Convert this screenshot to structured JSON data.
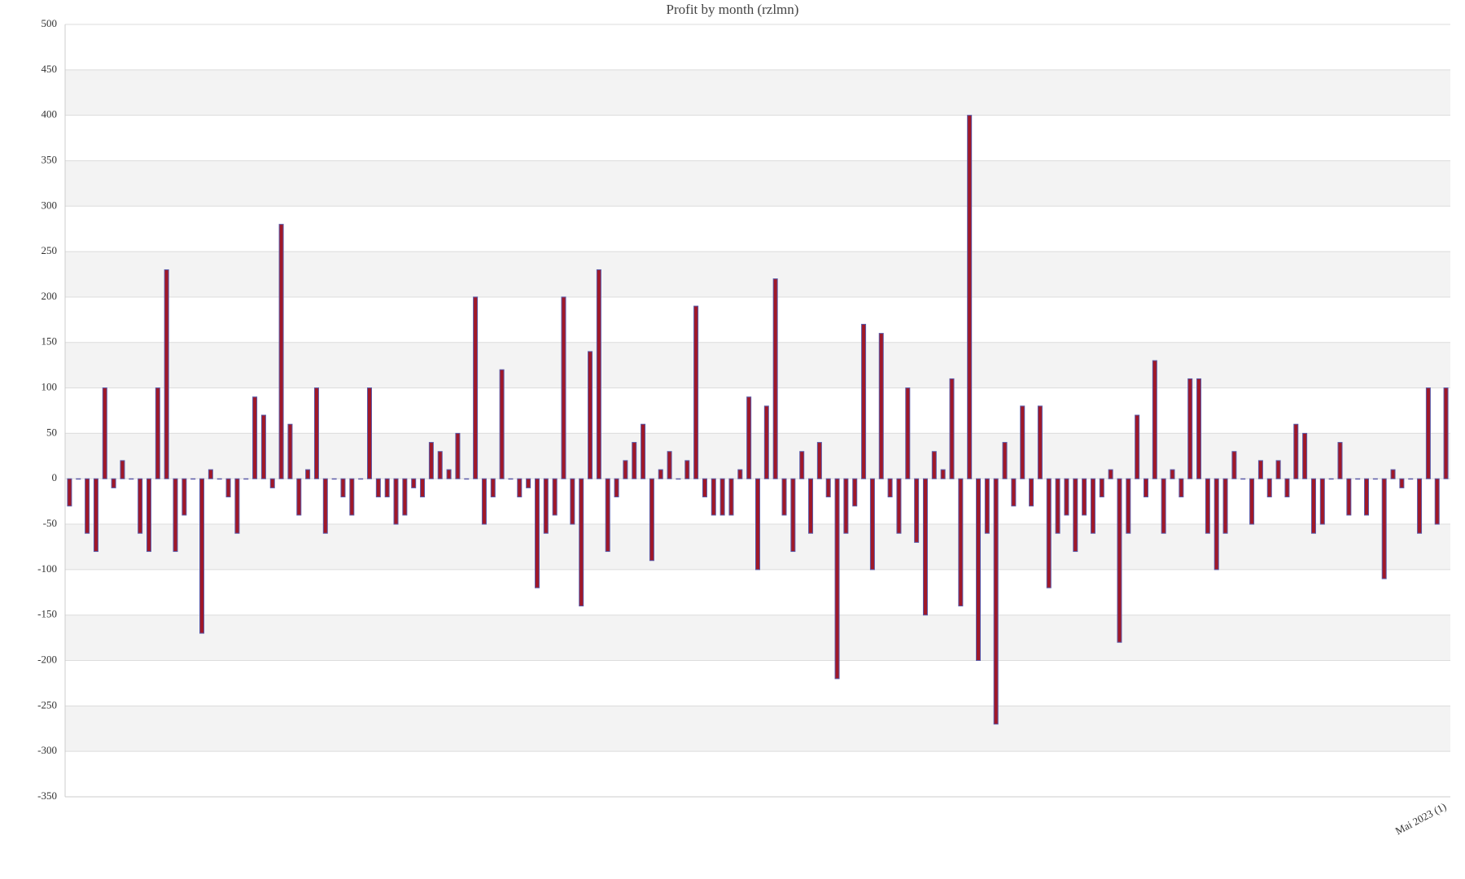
{
  "chart_data": {
    "type": "bar",
    "title": "Profit by month  (rzlmn)",
    "categories": [
      null,
      null,
      null,
      null,
      null,
      null,
      null,
      null,
      null,
      null,
      null,
      null,
      null,
      null,
      null,
      null,
      null,
      null,
      null,
      null,
      null,
      null,
      null,
      null,
      null,
      null,
      null,
      null,
      null,
      null,
      null,
      null,
      null,
      null,
      null,
      null,
      null,
      null,
      null,
      null,
      null,
      null,
      null,
      null,
      null,
      null,
      null,
      null,
      null,
      null,
      null,
      null,
      null,
      null,
      null,
      null,
      null,
      null,
      null,
      null,
      null,
      null,
      null,
      null,
      null,
      null,
      null,
      null,
      null,
      null,
      null,
      null,
      null,
      null,
      null,
      null,
      null,
      null,
      null,
      null,
      null,
      null,
      null,
      null,
      null,
      null,
      null,
      null,
      null,
      null,
      null,
      null,
      null,
      null,
      null,
      null,
      null,
      null,
      null,
      null,
      null,
      null,
      null,
      null,
      null,
      null,
      null,
      null,
      null,
      null,
      null,
      null,
      null,
      null,
      null,
      null,
      null,
      null,
      null,
      null,
      null,
      null,
      null,
      null,
      null,
      null,
      null,
      null,
      null,
      null,
      null,
      null,
      null,
      null,
      null,
      null,
      null,
      null,
      null,
      null,
      null,
      null,
      null,
      null,
      null,
      null,
      null,
      null,
      null,
      null,
      null,
      null,
      null,
      null,
      null,
      null,
      "Mai 2023 (1)"
    ],
    "values": [
      -30,
      0,
      -60,
      -80,
      100,
      -10,
      20,
      0,
      -60,
      -80,
      100,
      230,
      -80,
      -40,
      0,
      -170,
      10,
      0,
      -20,
      -60,
      0,
      90,
      70,
      -10,
      280,
      60,
      -40,
      10,
      100,
      -60,
      0,
      -20,
      -40,
      0,
      100,
      -20,
      -20,
      -50,
      -40,
      -10,
      -20,
      40,
      30,
      10,
      50,
      0,
      200,
      -50,
      -20,
      120,
      0,
      -20,
      -10,
      -120,
      -60,
      -40,
      200,
      -50,
      -140,
      140,
      230,
      -80,
      -20,
      20,
      40,
      60,
      -90,
      10,
      30,
      0,
      20,
      190,
      -20,
      -40,
      -40,
      -40,
      10,
      90,
      -100,
      80,
      220,
      -40,
      -80,
      30,
      -60,
      40,
      -20,
      -220,
      -60,
      -30,
      170,
      -100,
      160,
      -20,
      -60,
      100,
      -70,
      -150,
      30,
      10,
      110,
      -140,
      400,
      -200,
      -60,
      -270,
      40,
      -30,
      80,
      -30,
      80,
      -120,
      -60,
      -40,
      -80,
      -40,
      -60,
      -20,
      10,
      -180,
      -60,
      70,
      -20,
      130,
      -60,
      10,
      -20,
      110,
      110,
      -60,
      -100,
      -60,
      30,
      0,
      -50,
      20,
      -20,
      20,
      -20,
      60,
      50,
      -60,
      -50,
      0,
      40,
      -40,
      0,
      -40,
      0,
      -110,
      10,
      -10,
      0,
      -60,
      100,
      -50,
      100
    ],
    "color": "#a01828",
    "ylim": [
      -350,
      500
    ],
    "yticks": [
      -350,
      -300,
      -250,
      -200,
      -150,
      -100,
      -50,
      0,
      50,
      100,
      150,
      200,
      250,
      300,
      350,
      400,
      450,
      500
    ],
    "grid": true
  }
}
